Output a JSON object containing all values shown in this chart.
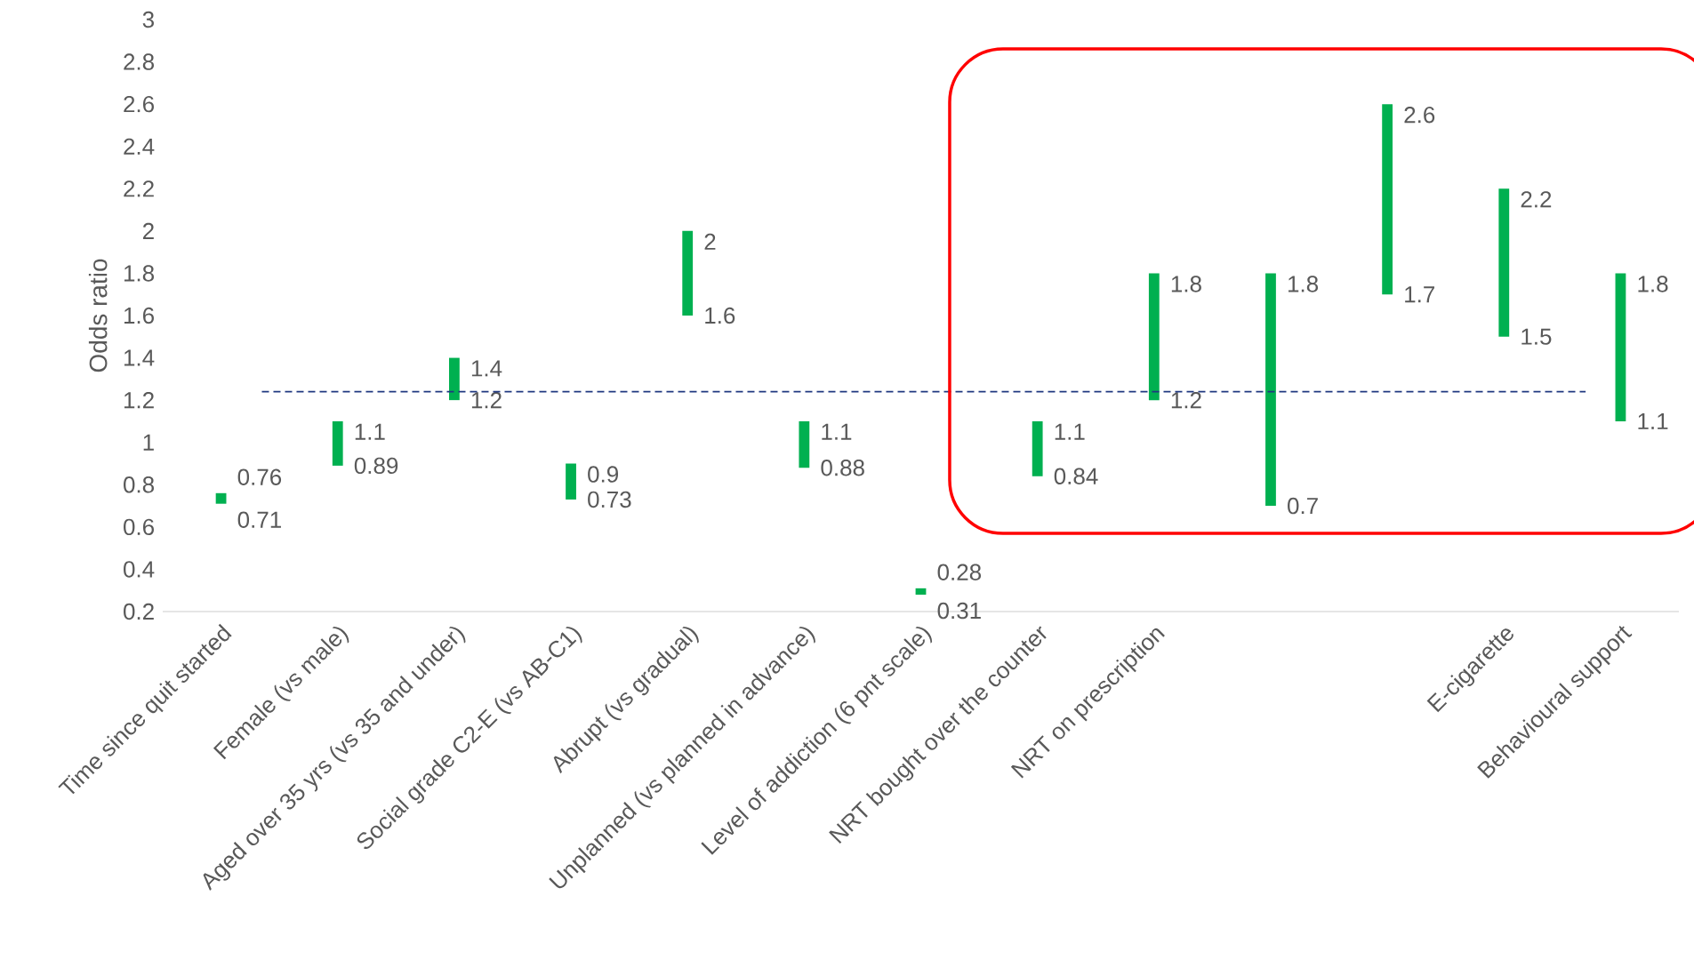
{
  "chart_data": {
    "type": "bar",
    "ylabel": "Odds ratio",
    "categories": [
      "Time since quit started",
      "Female (vs male)",
      "Aged over 35 yrs (vs 35 and under)",
      "Social grade C2-E (vs AB-C1)",
      "Abrupt (vs gradual)",
      "Unplanned (vs planned in advance)",
      "Level of addiction (6 pnt scale)",
      "NRT bought over the counter",
      "NRT on prescription",
      null,
      null,
      "E-cigarette",
      "Behavioural support"
    ],
    "base": [
      0.71,
      0.89,
      1.2,
      0.73,
      1.6,
      0.88,
      0.28,
      0.84,
      1.2,
      0.7,
      1.7,
      1.5,
      1.1
    ],
    "values": [
      0.05,
      0.21,
      0.2,
      0.17,
      0.4,
      0.22,
      0.03,
      0.26,
      0.6,
      1.1,
      0.9,
      0.7,
      0.7
    ],
    "color": "#00b050",
    "annotations": [
      {
        "text": "0.71",
        "x": "Time since quit started",
        "y": 0.71
      },
      {
        "text": "0.89",
        "x": "Female (vs male)",
        "y": 0.89
      },
      {
        "text": "1.2",
        "x": "Aged over 35 yrs (vs 35 and under)",
        "y": 1.2
      },
      {
        "text": "0.73",
        "x": "Social grade C2-E (vs AB-C1)",
        "y": 0.73
      },
      {
        "text": "1.6",
        "x": "Abrupt (vs gradual)",
        "y": 1.6
      },
      {
        "text": "0.88",
        "x": "Unplanned (vs planned in advance)",
        "y": 0.88
      },
      {
        "text": "0.31",
        "x": "Level of addiction (6 pnt scale)",
        "y": 0.28
      },
      {
        "text": "0.84",
        "x": "NRT bought over the counter",
        "y": 0.84
      },
      {
        "text": "1.2",
        "x": "NRT on prescription",
        "y": 1.2
      },
      "0.7",
      "1.7",
      {
        "text": "1.5",
        "x": "E-cigarette",
        "y": 1.5
      },
      {
        "text": "1.1",
        "x": "Behavioural support",
        "y": 1.1
      },
      {
        "text": "0.76",
        "x": "Time since quit started",
        "y": 0.76
      },
      {
        "text": "1.1",
        "x": "Female (vs male)",
        "y": 1.1
      },
      {
        "text": "1.4",
        "x": "Aged over 35 yrs (vs 35 and under)",
        "y": 1.4
      },
      {
        "text": "0.9",
        "x": "Social grade C2-E (vs AB-C1)",
        "y": 0.9
      },
      {
        "text": "2",
        "x": "Abrupt (vs gradual)",
        "y": 2
      },
      {
        "text": "1.1",
        "x": "Unplanned (vs planned in advance)",
        "y": 1.1
      },
      {
        "text": "0.28",
        "x": "Level of addiction (6 pnt scale)",
        "y": 0.31
      },
      {
        "text": "1.1",
        "x": "NRT bought over the counter",
        "y": 1.1
      },
      {
        "text": "1.8",
        "x": "NRT on prescription",
        "y": 1.8
      },
      "1.8",
      "2.6",
      {
        "text": "2.2",
        "x": "E-cigarette",
        "y": 2.2
      },
      {
        "text": "1.8",
        "x": "Behavioural support",
        "y": 1.8
      }
    ],
    "ylim": [
      0.2,
      3
    ],
    "yticks": [
      0.2,
      0.4,
      0.6,
      0.8,
      1,
      1.2,
      1.4,
      1.6,
      1.8,
      2,
      2.2,
      2.4,
      2.6,
      2.8,
      3
    ],
    "ref_lines": [
      {
        "axis": "y",
        "value": 1.24,
        "color": "#203880",
        "line_style": "dashed"
      }
    ],
    "grid": false
  }
}
